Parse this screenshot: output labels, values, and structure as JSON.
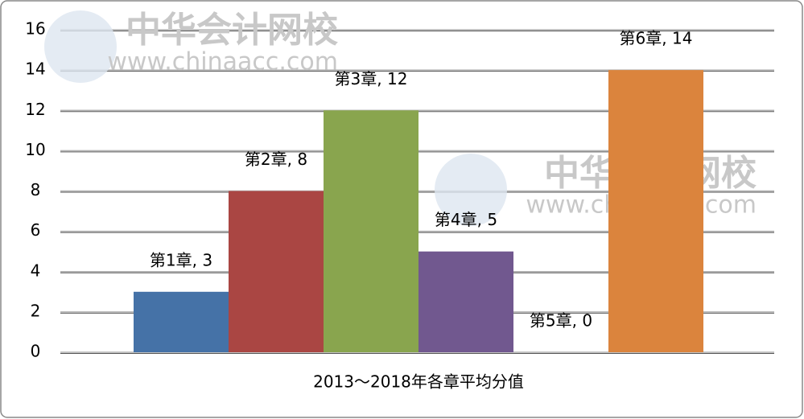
{
  "chart_data": {
    "type": "bar",
    "xlabel": "2013～2018年各章平均分值",
    "values": [
      3,
      8,
      12,
      5,
      0,
      14
    ],
    "value_labels": [
      "第1章, 3",
      "第2章, 8",
      "第3章, 12",
      "第4章, 5",
      "第5章, 0",
      "第6章, 14"
    ],
    "colors": [
      "#4572a7",
      "#aa4643",
      "#89a54e",
      "#71588f",
      "#4198af",
      "#db843d"
    ],
    "ylim": [
      0,
      16
    ],
    "yticks": [
      0,
      2,
      4,
      6,
      8,
      10,
      12,
      14,
      16
    ],
    "grid": true,
    "watermark": [
      "中华会计网校",
      "www.chinaacc.com"
    ]
  }
}
